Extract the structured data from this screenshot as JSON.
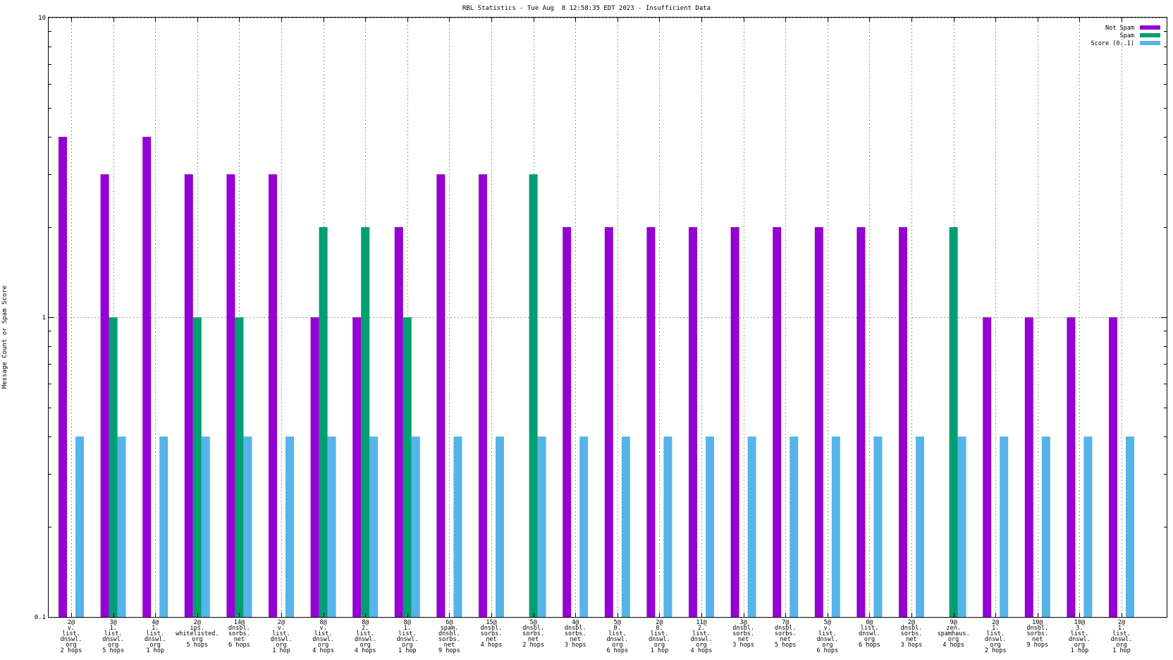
{
  "chart_data": {
    "type": "bar",
    "title": "RBL Statistics - Tue Aug  8 12:58:35 EDT 2023 - Insufficient Data",
    "ylabel": "Message Count or Spam Score",
    "xlabel": "",
    "y_scale": "log",
    "ylim": [
      0.1,
      10
    ],
    "y_ticks": [
      "0.1",
      "1",
      "10"
    ],
    "grid": true,
    "legend_position": "top-right",
    "categories": [
      [
        "2@",
        "v.",
        "list.",
        "dnswl.",
        "org",
        "2 hops"
      ],
      [
        "3@",
        "1.",
        "list.",
        "dnswl.",
        "org",
        "5 hops"
      ],
      [
        "4@",
        "1.",
        "list.",
        "dnswl.",
        "org",
        "1 hop"
      ],
      [
        "2@",
        "ips.",
        "whitelisted.",
        "org",
        "5 hops"
      ],
      [
        "14@",
        "dnsbl.",
        "sorbs.",
        "net",
        "6 hops"
      ],
      [
        "2@",
        "v.",
        "list.",
        "dnswl.",
        "org",
        "1 hop"
      ],
      [
        "8@",
        "v.",
        "list.",
        "dnswl.",
        "org",
        "4 hops"
      ],
      [
        "8@",
        "2.",
        "list.",
        "dnswl.",
        "org",
        "4 hops"
      ],
      [
        "8@",
        "1.",
        "list.",
        "dnswl.",
        "org",
        "1 hop"
      ],
      [
        "6@",
        "spam.",
        "dnsbl.",
        "sorbs.",
        "net",
        "9 hops"
      ],
      [
        "15@",
        "dnsbl.",
        "sorbs.",
        "net",
        "4 hops"
      ],
      [
        "5@",
        "dnsbl.",
        "sorbs.",
        "net",
        "2 hops"
      ],
      [
        "4@",
        "dnsbl.",
        "sorbs.",
        "net",
        "3 hops"
      ],
      [
        "5@",
        "0.",
        "list.",
        "dnswl.",
        "org",
        "6 hops"
      ],
      [
        "2@",
        "0.",
        "list.",
        "dnswl.",
        "org",
        "1 hop"
      ],
      [
        "11@",
        "2.",
        "list.",
        "dnswl.",
        "org",
        "4 hops"
      ],
      [
        "3@",
        "dnsbl.",
        "sorbs.",
        "net",
        "3 hops"
      ],
      [
        "7@",
        "dnsbl.",
        "sorbs.",
        "net",
        "5 hops"
      ],
      [
        "5@",
        "v.",
        "list.",
        "dnswl.",
        "org",
        "6 hops"
      ],
      [
        "0@",
        "list.",
        "dnswl.",
        "org",
        "6 hops"
      ],
      [
        "2@",
        "dnsbl.",
        "sorbs.",
        "net",
        "3 hops"
      ],
      [
        "9@",
        "zen.",
        "spamhaus.",
        "org",
        "4 hops"
      ],
      [
        "2@",
        "1.",
        "list.",
        "dnswl.",
        "org",
        "2 hops"
      ],
      [
        "10@",
        "dnsbl.",
        "sorbs.",
        "net",
        "9 hops"
      ],
      [
        "10@",
        "3.",
        "list.",
        "dnswl.",
        "org",
        "1 hop"
      ],
      [
        "2@",
        "1.",
        "list.",
        "dnswl.",
        "org",
        "1 hop"
      ]
    ],
    "series": [
      {
        "name": "Not Spam",
        "color": "#9400d3",
        "values": [
          4,
          3,
          4,
          3,
          3,
          3,
          1,
          1,
          2,
          3,
          3,
          0,
          2,
          2,
          2,
          2,
          2,
          2,
          2,
          2,
          2,
          0,
          1,
          1,
          1,
          1
        ]
      },
      {
        "name": "Spam",
        "color": "#009e73",
        "values": [
          0,
          1,
          0,
          1,
          1,
          0,
          2,
          2,
          1,
          0,
          0,
          3,
          0,
          0,
          0,
          0,
          0,
          0,
          0,
          0,
          0,
          2,
          0,
          0,
          0,
          0
        ]
      },
      {
        "name": "Score (0..1)",
        "color": "#56b4e9",
        "values": [
          0.4,
          0.4,
          0.4,
          0.4,
          0.4,
          0.4,
          0.4,
          0.4,
          0.4,
          0.4,
          0.4,
          0.4,
          0.4,
          0.4,
          0.4,
          0.4,
          0.4,
          0.4,
          0.4,
          0.4,
          0.4,
          0.4,
          0.4,
          0.4,
          0.4,
          0.4
        ]
      }
    ]
  }
}
